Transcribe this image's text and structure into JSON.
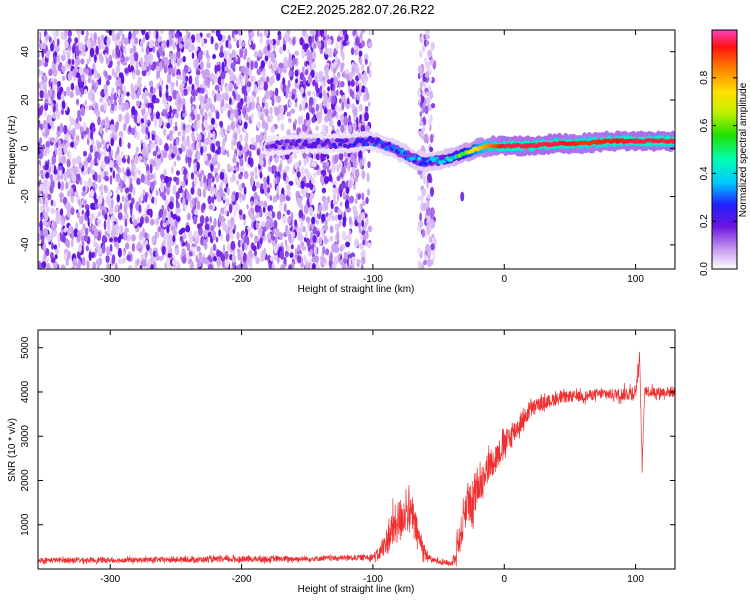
{
  "title": "C2E2.2025.282.07.26.R22",
  "colors": {
    "snr_line": "#f03030",
    "axis": "#000000"
  },
  "chart_data": [
    {
      "type": "heatmap",
      "title": "C2E2.2025.282.07.26.R22",
      "xlabel": "Height of straight line (km)",
      "ylabel": "Frequency (Hz)",
      "xlim": [
        -355,
        130
      ],
      "ylim": [
        -50,
        49
      ],
      "xticks": [
        -300,
        -200,
        -100,
        0,
        100
      ],
      "xtick_labels": [
        "-300",
        "-200",
        "-100",
        "0",
        "100"
      ],
      "yticks": [
        -40,
        -20,
        0,
        20,
        40
      ],
      "ytick_labels": [
        "-40",
        "-20",
        "0",
        "20",
        "40"
      ],
      "ridge": {
        "description": "dominant spectral ridge",
        "x": [
          -180,
          -150,
          -120,
          -100,
          -85,
          -70,
          -60,
          -50,
          -40,
          -30,
          -20,
          -10,
          0,
          20,
          40,
          60,
          80,
          100,
          120,
          130
        ],
        "y": [
          1,
          2,
          2,
          3,
          0,
          -4,
          -6,
          -5,
          -4,
          -2,
          0,
          1,
          1,
          1,
          2,
          2,
          3,
          3,
          3,
          3
        ],
        "amplitude": [
          0.18,
          0.2,
          0.22,
          0.25,
          0.3,
          0.35,
          0.32,
          0.35,
          0.45,
          0.6,
          0.75,
          0.85,
          0.95,
          0.95,
          0.95,
          0.9,
          0.92,
          0.95,
          0.95,
          0.95
        ]
      },
      "noise_regions": [
        {
          "from": -355,
          "to": -102,
          "level": 0.1
        },
        {
          "from": -65,
          "to": -53,
          "level": 0.08
        }
      ],
      "colorbar": {
        "label": "Normalized spectral amplitude",
        "range": [
          0.0,
          1.0
        ],
        "ticks": [
          0.0,
          0.2,
          0.4,
          0.6,
          0.8
        ],
        "tick_labels": [
          "0.0",
          "0.2",
          "0.4",
          "0.6",
          "0.8"
        ]
      }
    },
    {
      "type": "line",
      "xlabel": "Height of straight line (km)",
      "ylabel": "SNR (10 * v/v)",
      "xlim": [
        -355,
        130
      ],
      "ylim": [
        0,
        5400
      ],
      "xticks": [
        -300,
        -200,
        -100,
        0,
        100
      ],
      "xtick_labels": [
        "-300",
        "-200",
        "-100",
        "0",
        "100"
      ],
      "yticks": [
        1000,
        2000,
        3000,
        4000,
        5000
      ],
      "ytick_labels": [
        "1000",
        "2000",
        "3000",
        "4000",
        "5000"
      ],
      "series": [
        {
          "name": "SNR",
          "x": [
            -355,
            -300,
            -250,
            -200,
            -150,
            -110,
            -100,
            -95,
            -90,
            -85,
            -80,
            -75,
            -70,
            -65,
            -60,
            -55,
            -50,
            -45,
            -40,
            -38,
            -35,
            -32,
            -30,
            -28,
            -25,
            -22,
            -20,
            -18,
            -15,
            -10,
            -5,
            0,
            5,
            10,
            15,
            20,
            25,
            30,
            35,
            40,
            50,
            60,
            70,
            80,
            90,
            100,
            103,
            105,
            107,
            110,
            120,
            130
          ],
          "y": [
            200,
            200,
            210,
            220,
            230,
            260,
            280,
            350,
            600,
            900,
            1100,
            1300,
            1200,
            700,
            350,
            200,
            180,
            150,
            120,
            300,
            600,
            900,
            1300,
            1600,
            1200,
            1700,
            2000,
            1900,
            2200,
            2400,
            2600,
            2800,
            3000,
            3200,
            3400,
            3600,
            3700,
            3750,
            3800,
            3850,
            3900,
            3900,
            3950,
            3950,
            3950,
            4000,
            4800,
            2300,
            4100,
            4000,
            4000,
            4000
          ],
          "noise_amplitude": [
            60,
            60,
            60,
            70,
            60,
            60,
            80,
            150,
            300,
            450,
            500,
            450,
            400,
            300,
            150,
            60,
            60,
            60,
            60,
            200,
            350,
            400,
            450,
            500,
            450,
            450,
            400,
            400,
            350,
            350,
            300,
            300,
            300,
            250,
            200,
            200,
            150,
            150,
            150,
            150,
            120,
            120,
            120,
            120,
            150,
            200,
            150,
            150,
            150,
            120,
            120,
            120
          ]
        }
      ]
    }
  ]
}
